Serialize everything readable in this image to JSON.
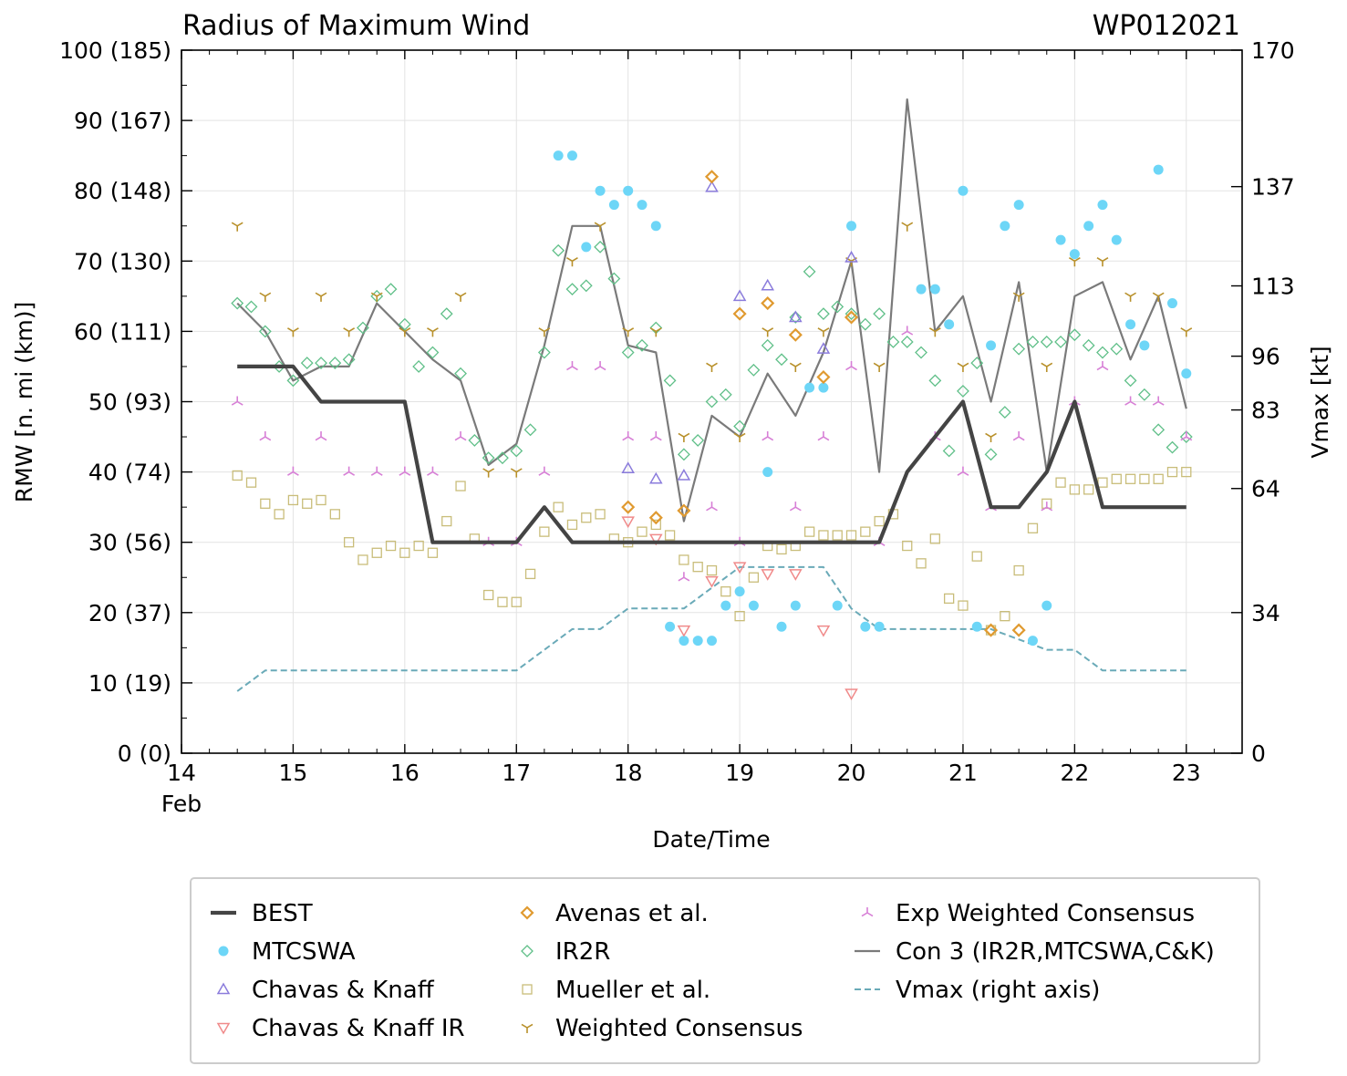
{
  "chart_data": {
    "type": "line",
    "title": "Radius of Maximum Wind",
    "storm_id": "WP012021",
    "xlabel": "Date/Time",
    "ylabel": "RMW [n. mi (km)]",
    "ylabel_right": "Vmax [kt]",
    "xlim": [
      14,
      23.5
    ],
    "ylim": [
      0,
      100
    ],
    "right_ylim": [
      0,
      170
    ],
    "x_month_label": "Feb",
    "x_ticks": [
      14,
      15,
      16,
      17,
      18,
      19,
      20,
      21,
      22,
      23
    ],
    "x_tick_labels": [
      "14",
      "15",
      "16",
      "17",
      "18",
      "19",
      "20",
      "21",
      "22",
      "23"
    ],
    "y_ticks": [
      0,
      10,
      20,
      30,
      40,
      50,
      60,
      70,
      80,
      90,
      100
    ],
    "y_tick_labels": [
      "0 (0)",
      "10 (19)",
      "20 (37)",
      "30 (56)",
      "40 (74)",
      "50 (93)",
      "60 (111)",
      "70 (130)",
      "80 (148)",
      "90 (167)",
      "100 (185)"
    ],
    "right_ticks": [
      0,
      34,
      64,
      83,
      96,
      113,
      137,
      170
    ],
    "right_tick_labels": [
      "0",
      "34",
      "64",
      "83",
      "96",
      "113",
      "137",
      "170"
    ],
    "grid": true,
    "legend_position": "bottom",
    "series": [
      {
        "name": "BEST",
        "kind": "line",
        "color": "#444444",
        "x": [
          14.5,
          15.0,
          15.25,
          16.0,
          16.25,
          17.0,
          17.25,
          17.5,
          20.25,
          20.5,
          21.0,
          21.25,
          21.5,
          21.75,
          22.0,
          22.25,
          23.0
        ],
        "y": [
          55,
          55,
          50,
          50,
          30,
          30,
          35,
          30,
          30,
          40,
          50,
          35,
          35,
          40,
          50,
          35,
          35
        ]
      },
      {
        "name": "MTCSWA",
        "kind": "circle",
        "color": "#6dd6f7",
        "x": [
          17.375,
          17.5,
          17.625,
          17.75,
          17.875,
          18.0,
          18.125,
          18.25,
          18.375,
          18.5,
          18.625,
          18.75,
          18.875,
          19.0,
          19.125,
          19.25,
          19.375,
          19.5,
          19.625,
          19.75,
          19.875,
          20.0,
          20.125,
          20.25,
          20.625,
          20.75,
          20.875,
          21.0,
          21.125,
          21.25,
          21.375,
          21.5,
          21.625,
          21.75,
          21.875,
          22.0,
          22.125,
          22.25,
          22.375,
          22.5,
          22.625,
          22.75,
          22.875,
          23.0
        ],
        "y": [
          85,
          85,
          72,
          80,
          78,
          80,
          78,
          75,
          18,
          16,
          16,
          16,
          21,
          23,
          21,
          40,
          18,
          21,
          52,
          52,
          21,
          75,
          18,
          18,
          66,
          66,
          61,
          80,
          18,
          58,
          75,
          78,
          16,
          21,
          73,
          71,
          75,
          78,
          73,
          61,
          58,
          83,
          64,
          54
        ]
      },
      {
        "name": "Chavas & Knaff",
        "kind": "triangle-up",
        "color": "#8b7cdc",
        "x": [
          18.0,
          18.25,
          18.5,
          18.75,
          19.0,
          19.25,
          19.5,
          19.75,
          20.0
        ],
        "y": [
          40.5,
          39,
          39.5,
          80.5,
          65,
          66.5,
          62,
          57.5,
          70.5
        ]
      },
      {
        "name": "Chavas & Knaff IR",
        "kind": "triangle-down",
        "color": "#f08a8a",
        "x": [
          18.0,
          18.25,
          18.5,
          18.75,
          19.0,
          19.25,
          19.5,
          19.75,
          20.0
        ],
        "y": [
          33,
          30.5,
          17.5,
          24.5,
          26.5,
          25.5,
          25.5,
          17.5,
          8.5
        ]
      },
      {
        "name": "Avenas et al.",
        "kind": "diamond",
        "color": "#e09a30",
        "x": [
          18.0,
          18.25,
          18.5,
          18.75,
          19.0,
          19.25,
          19.5,
          19.75,
          20.0,
          21.25,
          21.5
        ],
        "y": [
          35,
          33.5,
          34.5,
          82,
          62.5,
          64,
          59.5,
          53.5,
          62,
          17.5,
          17.5
        ]
      },
      {
        "name": "IR2R",
        "kind": "diamond-open",
        "color": "#5fbf88",
        "x": [
          14.5,
          14.625,
          14.75,
          14.875,
          15.0,
          15.125,
          15.25,
          15.375,
          15.5,
          15.625,
          15.75,
          15.875,
          16.0,
          16.125,
          16.25,
          16.375,
          16.5,
          16.625,
          16.75,
          16.875,
          17.0,
          17.125,
          17.25,
          17.375,
          17.5,
          17.625,
          17.75,
          17.875,
          18.0,
          18.125,
          18.25,
          18.375,
          18.5,
          18.625,
          18.75,
          18.875,
          19.0,
          19.125,
          19.25,
          19.375,
          19.5,
          19.625,
          19.75,
          19.875,
          20.0,
          20.125,
          20.25,
          20.375,
          20.5,
          20.625,
          20.75,
          20.875,
          21.0,
          21.125,
          21.25,
          21.375,
          21.5,
          21.625,
          21.75,
          21.875,
          22.0,
          22.125,
          22.25,
          22.375,
          22.5,
          22.625,
          22.75,
          22.875,
          23.0
        ],
        "y": [
          64,
          63.5,
          60,
          55,
          53,
          55.5,
          55.5,
          55.5,
          56,
          60.5,
          65,
          66,
          61,
          55,
          57,
          62.5,
          54,
          44.5,
          42,
          42,
          43,
          46,
          57,
          71.5,
          66,
          66.5,
          72,
          67.5,
          57,
          58,
          60.5,
          53,
          42.5,
          44.5,
          50,
          51,
          46.5,
          54.5,
          58,
          56,
          62,
          68.5,
          62.5,
          63.5,
          62.5,
          61,
          62.5,
          58.5,
          58.5,
          57,
          53,
          43,
          51.5,
          55.5,
          42.5,
          48.5,
          57.5,
          58.5,
          58.5,
          58.5,
          59.5,
          58,
          57,
          57.5,
          53,
          51,
          46,
          43.5,
          45
        ]
      },
      {
        "name": "Mueller et al.",
        "kind": "square-open",
        "color": "#c9bd7a",
        "x": [
          14.5,
          14.625,
          14.75,
          14.875,
          15.0,
          15.125,
          15.25,
          15.375,
          15.5,
          15.625,
          15.75,
          15.875,
          16.0,
          16.125,
          16.25,
          16.375,
          16.5,
          16.625,
          16.75,
          16.875,
          17.0,
          17.125,
          17.25,
          17.375,
          17.5,
          17.625,
          17.75,
          17.875,
          18.0,
          18.125,
          18.25,
          18.375,
          18.5,
          18.625,
          18.75,
          18.875,
          19.0,
          19.125,
          19.25,
          19.375,
          19.5,
          19.625,
          19.75,
          19.875,
          20.0,
          20.125,
          20.25,
          20.375,
          20.5,
          20.625,
          20.75,
          20.875,
          21.0,
          21.125,
          21.25,
          21.375,
          21.5,
          21.625,
          21.75,
          21.875,
          22.0,
          22.125,
          22.25,
          22.375,
          22.5,
          22.625,
          22.75,
          22.875,
          23.0
        ],
        "y": [
          39.5,
          38.5,
          35.5,
          34,
          36,
          35.5,
          36,
          34,
          30,
          27.5,
          28.5,
          29.5,
          28.5,
          29.5,
          28.5,
          33,
          38,
          30.5,
          22.5,
          21.5,
          21.5,
          25.5,
          31.5,
          35,
          32.5,
          33.5,
          34,
          30.5,
          30,
          31.5,
          32.5,
          31,
          27.5,
          26.5,
          26,
          23,
          19.5,
          25,
          29.5,
          29,
          29.5,
          31.5,
          31,
          31,
          31,
          31.5,
          33,
          34,
          29.5,
          27,
          30.5,
          22,
          21,
          28,
          17.5,
          19.5,
          26,
          32,
          35.5,
          38.5,
          37.5,
          37.5,
          38.5,
          39,
          39,
          39,
          39,
          40,
          40
        ]
      },
      {
        "name": "Weighted Consensus",
        "kind": "tri-down",
        "color": "#b8902a",
        "x": [
          14.5,
          14.75,
          15.0,
          15.25,
          15.5,
          15.75,
          16.0,
          16.25,
          16.5,
          16.75,
          17.0,
          17.25,
          17.5,
          17.75,
          18.0,
          18.25,
          18.5,
          18.75,
          19.0,
          19.25,
          19.5,
          19.75,
          20.0,
          20.25,
          20.5,
          20.75,
          21.0,
          21.25,
          21.5,
          21.75,
          22.0,
          22.25,
          22.5,
          22.75,
          23.0
        ],
        "y": [
          75,
          65,
          60,
          65,
          60,
          65,
          60,
          60,
          65,
          40,
          40,
          60,
          70,
          75,
          60,
          60,
          45,
          55,
          45,
          60,
          55,
          60,
          70,
          55,
          75,
          60,
          55,
          45,
          65,
          55,
          70,
          70,
          65,
          65,
          60
        ]
      },
      {
        "name": "Exp Weighted Consensus",
        "kind": "tri-up",
        "color": "#d77fd6",
        "x": [
          14.5,
          14.75,
          15.0,
          15.25,
          15.5,
          15.75,
          16.0,
          16.25,
          16.5,
          16.75,
          17.0,
          17.25,
          17.5,
          17.75,
          18.0,
          18.25,
          18.5,
          18.75,
          19.0,
          19.25,
          19.5,
          19.75,
          20.0,
          20.25,
          20.5,
          20.75,
          21.0,
          21.25,
          21.5,
          21.75,
          22.0,
          22.25,
          22.5,
          22.75,
          23.0
        ],
        "y": [
          50,
          45,
          40,
          45,
          40,
          40,
          40,
          40,
          45,
          30,
          30,
          40,
          55,
          55,
          45,
          45,
          25,
          35,
          30,
          45,
          35,
          45,
          55,
          30,
          60,
          45,
          40,
          35,
          45,
          35,
          50,
          55,
          50,
          50,
          45
        ]
      },
      {
        "name": "Con 3 (IR2R,MTCSWA,C&K)",
        "kind": "line",
        "color": "#7a7a7a",
        "x": [
          14.5,
          14.75,
          15.0,
          15.25,
          15.5,
          15.75,
          16.0,
          16.25,
          16.5,
          16.75,
          17.0,
          17.25,
          17.5,
          17.75,
          18.0,
          18.25,
          18.5,
          18.75,
          19.0,
          19.25,
          19.5,
          19.75,
          20.0,
          20.25,
          20.5,
          20.75,
          21.0,
          21.25,
          21.5,
          21.75,
          22.0,
          22.25,
          22.5,
          22.75,
          23.0
        ],
        "y": [
          64,
          60,
          53,
          55,
          55,
          64,
          60,
          56,
          53,
          41,
          44,
          58,
          75,
          75,
          58,
          57,
          33,
          48,
          45,
          54,
          48,
          57,
          70,
          40,
          93,
          60,
          65,
          50,
          67,
          40,
          65,
          67,
          56,
          65,
          49
        ]
      },
      {
        "name": "Vmax (right axis)",
        "kind": "dashed",
        "color": "#6aaab8",
        "axis": "right",
        "x": [
          14.5,
          14.75,
          17.0,
          17.5,
          17.75,
          18.0,
          18.5,
          19.0,
          19.75,
          20.0,
          20.25,
          21.25,
          21.75,
          22.0,
          22.25,
          23.0
        ],
        "y": [
          15,
          20,
          20,
          30,
          30,
          35,
          35,
          45,
          45,
          35,
          30,
          30,
          25,
          25,
          20,
          20
        ]
      }
    ]
  }
}
